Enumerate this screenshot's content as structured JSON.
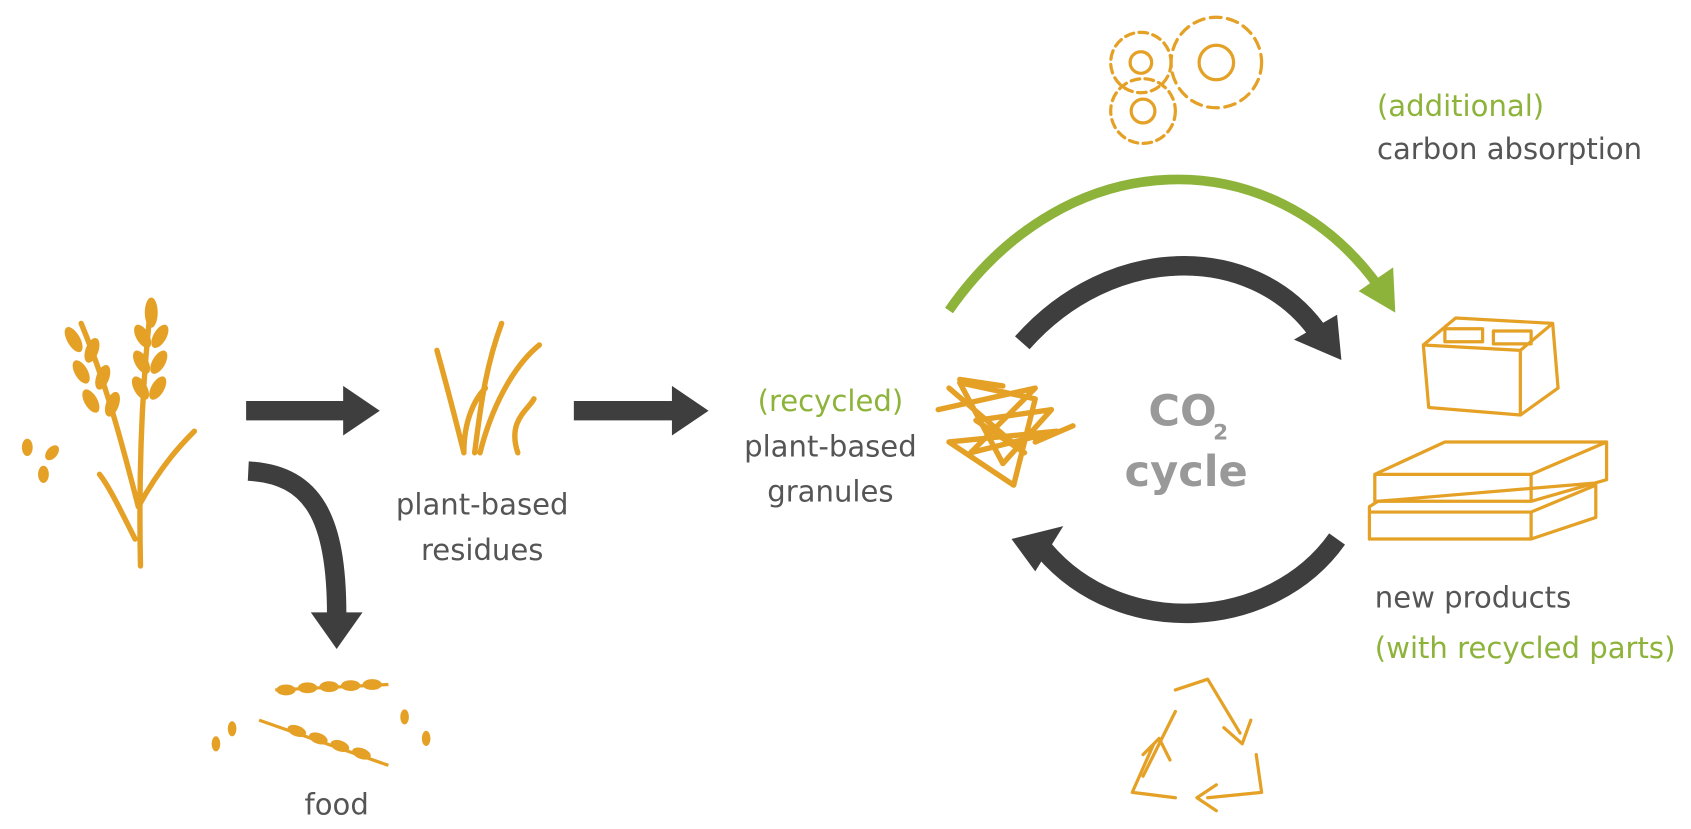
{
  "carbon_absorption": {
    "qualifier": "(additional)",
    "text": "carbon absorption"
  },
  "residues": {
    "lines": [
      "plant-based",
      "residues"
    ]
  },
  "granules": {
    "qualifier": "(recycled)",
    "lines": [
      "plant-based",
      "granules"
    ]
  },
  "cycle": {
    "co": "CO",
    "subscript": "2",
    "text": "cycle"
  },
  "products": {
    "text": "new products",
    "qualifier": "(with recycled parts)"
  },
  "food": {
    "text": "food"
  }
}
